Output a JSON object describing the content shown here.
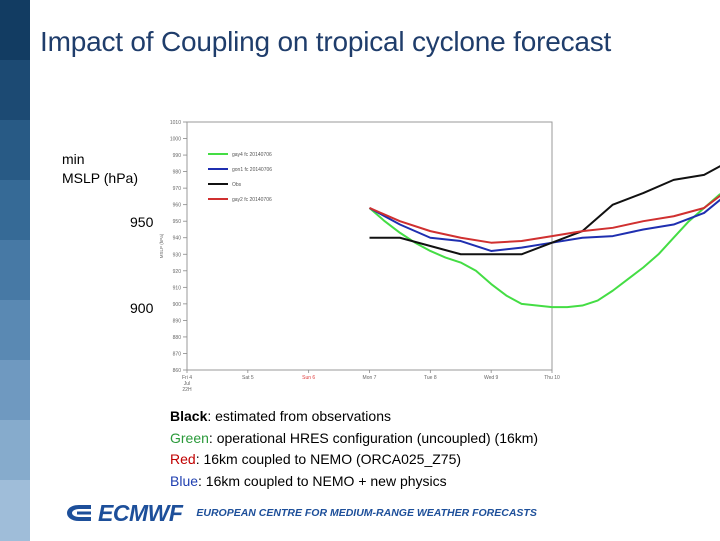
{
  "slide": {
    "title": "Impact of Coupling on tropical cyclone forecast",
    "ylabel_line1": "min",
    "ylabel_line2": "MSLP  (hPa)",
    "overlay_ticks": [
      "950",
      "900"
    ],
    "sidebar_colors": [
      "#123c62",
      "#1c4a73",
      "#285a85",
      "#366a96",
      "#4779a5",
      "#5a89b3",
      "#6f99c0",
      "#86abcc",
      "#9fbdd9"
    ]
  },
  "legend": [
    {
      "label": "Black",
      "text": ": estimated from observations",
      "color": "#000000"
    },
    {
      "label": "Green",
      "text": ": operational HRES configuration (uncoupled) (16km)",
      "color": "#2a9a3a"
    },
    {
      "label": "Red",
      "text": ": 16km coupled to NEMO (ORCA025_Z75)",
      "color": "#c00000"
    },
    {
      "label": "Blue",
      "text": ": 16km coupled to NEMO + new physics",
      "color": "#1f3fb0"
    }
  ],
  "footer": {
    "logo_text": "ECMWF",
    "centre_text": "EUROPEAN CENTRE FOR MEDIUM-RANGE WEATHER FORECASTS"
  },
  "chart_data": {
    "type": "line",
    "x_labels": [
      "Fri 4 Jul 22H",
      "Sat 5",
      "Sun 6",
      "Mon 7",
      "Tue 8",
      "Wed 9",
      "Thu 10"
    ],
    "x_label_colors": [
      "#666666",
      "#666666",
      "#e04040",
      "#666666",
      "#666666",
      "#666666",
      "#666666"
    ],
    "ylim": [
      860,
      1010
    ],
    "y_ticks": [
      1010,
      1000,
      990,
      980,
      970,
      960,
      950,
      940,
      930,
      920,
      910,
      900,
      890,
      880,
      870,
      860
    ],
    "inner_ylabel": "MSLP (hPa)",
    "legend_placement": "top-left",
    "series": [
      {
        "name": "gay4 fc 20140706",
        "color": "#44dd44",
        "x": [
          3.0,
          3.25,
          3.5,
          3.75,
          4.0,
          4.25,
          4.5,
          4.75,
          5.0,
          5.25,
          5.5,
          5.75,
          6.0,
          6.25,
          6.5,
          6.75,
          7.0,
          7.25,
          7.5,
          7.75,
          8.0,
          8.25,
          8.5,
          8.75,
          9.0,
          9.25,
          9.5,
          9.75,
          10.0
        ],
        "y": [
          958,
          950,
          943,
          937,
          932,
          928,
          925,
          920,
          912,
          905,
          900,
          899,
          898,
          898,
          899,
          902,
          908,
          915,
          922,
          930,
          940,
          950,
          958,
          966,
          972,
          976,
          978,
          980,
          981
        ]
      },
      {
        "name": "gon1 fc 20140706",
        "color": "#1f2fb0",
        "x": [
          3.0,
          3.5,
          4.0,
          4.5,
          5.0,
          5.5,
          6.0,
          6.5,
          7.0,
          7.5,
          8.0,
          8.5,
          9.0,
          9.5,
          10.0
        ],
        "y": [
          958,
          948,
          940,
          938,
          932,
          934,
          937,
          940,
          941,
          945,
          948,
          955,
          970,
          980,
          987
        ]
      },
      {
        "name": "Obs",
        "color": "#111111",
        "x": [
          3.0,
          3.5,
          4.0,
          4.5,
          5.0,
          5.5,
          6.0,
          6.5,
          7.0,
          7.5,
          8.0,
          8.5,
          9.0,
          9.5,
          10.0
        ],
        "y": [
          940,
          940,
          935,
          930,
          930,
          930,
          937,
          944,
          960,
          967,
          975,
          978,
          988,
          990,
          991
        ]
      },
      {
        "name": "gay2 fc 20140706",
        "color": "#d03030",
        "x": [
          3.0,
          3.5,
          4.0,
          4.5,
          5.0,
          5.5,
          6.0,
          6.5,
          7.0,
          7.5,
          8.0,
          8.5,
          9.0,
          9.5,
          10.0
        ],
        "y": [
          958,
          950,
          944,
          940,
          937,
          938,
          941,
          944,
          946,
          950,
          953,
          958,
          972,
          982,
          988
        ]
      }
    ]
  }
}
